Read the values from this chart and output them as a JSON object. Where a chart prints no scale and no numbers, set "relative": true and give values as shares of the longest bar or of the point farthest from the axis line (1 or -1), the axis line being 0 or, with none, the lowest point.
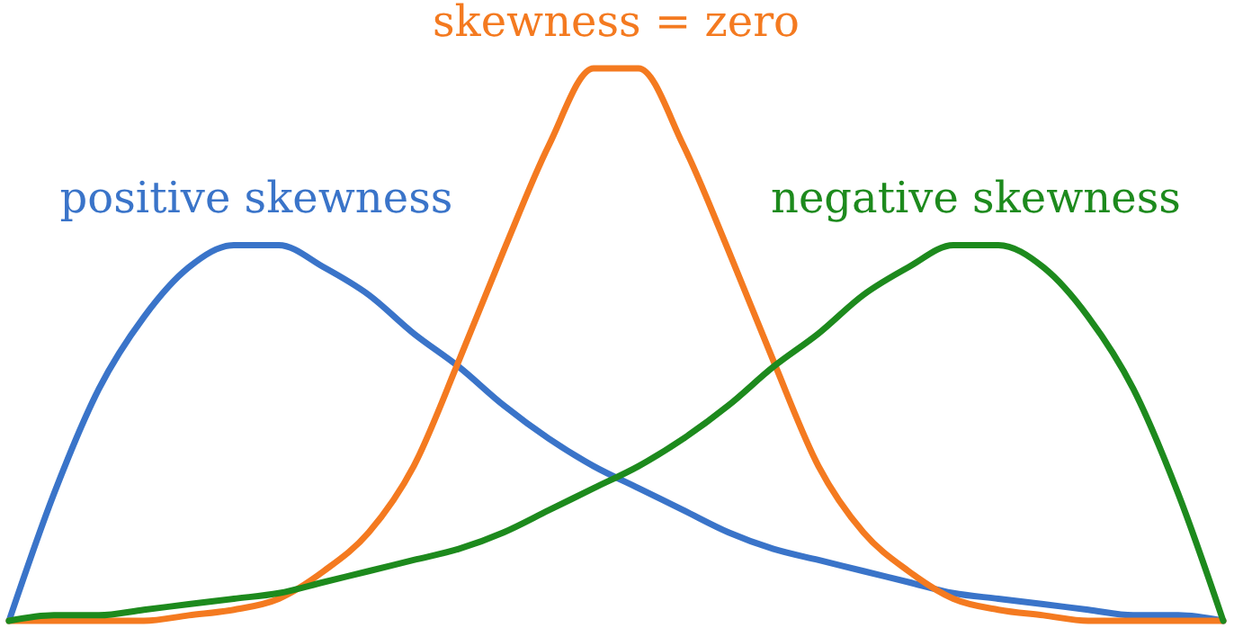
{
  "chart_data": {
    "type": "line",
    "relative": true,
    "legend": false,
    "marker": "none",
    "line_style": "solid",
    "categories": [
      null,
      null,
      null,
      null,
      null,
      null,
      null,
      null,
      null,
      null,
      null,
      null,
      null,
      null,
      null,
      null,
      null,
      null,
      null,
      null,
      null,
      null,
      null,
      null,
      null,
      null,
      null,
      null
    ],
    "series": [
      {
        "name": "positive skewness",
        "color": "#3a74c9",
        "values": [
          0,
          0.23,
          0.42,
          0.55,
          0.64,
          0.68,
          0.68,
          0.64,
          0.59,
          0.52,
          0.46,
          0.39,
          0.33,
          0.28,
          0.24,
          0.2,
          0.16,
          0.13,
          0.11,
          0.09,
          0.07,
          0.05,
          0.04,
          0.03,
          0.02,
          0.01,
          0.01,
          0
        ]
      },
      {
        "name": "skewness = zero",
        "color": "#f47a20",
        "values": [
          0,
          0,
          0,
          0,
          0.01,
          0.02,
          0.04,
          0.09,
          0.16,
          0.28,
          0.47,
          0.67,
          0.86,
          1,
          1,
          0.86,
          0.67,
          0.47,
          0.28,
          0.16,
          0.09,
          0.04,
          0.02,
          0.01,
          0,
          0,
          0,
          0
        ]
      },
      {
        "name": "negative skewness",
        "color": "#1d8a1d",
        "values": [
          0,
          0.01,
          0.01,
          0.02,
          0.03,
          0.04,
          0.05,
          0.07,
          0.09,
          0.11,
          0.13,
          0.16,
          0.2,
          0.24,
          0.28,
          0.33,
          0.39,
          0.46,
          0.52,
          0.59,
          0.64,
          0.68,
          0.68,
          0.64,
          0.55,
          0.42,
          0.23,
          0
        ]
      }
    ]
  }
}
